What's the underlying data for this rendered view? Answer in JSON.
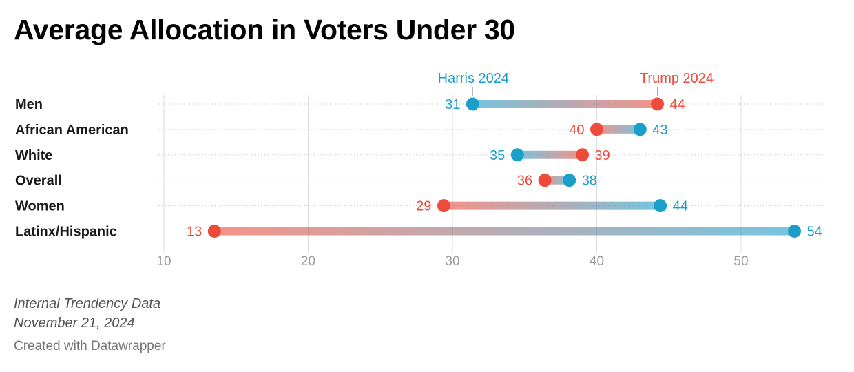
{
  "header": {
    "title": "Average Allocation in Voters Under 30"
  },
  "footer": {
    "note_line1": "Internal Trendency Data",
    "note_line2": "November 21, 2024",
    "credit": "Created with Datawrapper"
  },
  "colors": {
    "harris": "#1a9fcb",
    "trump": "#ef4b3b",
    "grid": "#dddddd",
    "ticks": "#9a9a9a"
  },
  "chart_data": {
    "type": "dot-range",
    "title": "Average Allocation in Voters Under 30",
    "series": [
      {
        "name": "Harris 2024",
        "color": "#1a9fcb",
        "values": [
          31.4,
          43.0,
          34.5,
          38.1,
          44.4,
          53.7
        ],
        "labels": [
          "31",
          "43",
          "35",
          "38",
          "44",
          "54"
        ]
      },
      {
        "name": "Trump 2024",
        "color": "#ef4b3b",
        "values": [
          44.2,
          40.0,
          39.0,
          36.4,
          29.4,
          13.5
        ],
        "labels": [
          "44",
          "40",
          "39",
          "36",
          "29",
          "13"
        ]
      }
    ],
    "categories": [
      "Men",
      "African American",
      "White",
      "Overall",
      "Women",
      "Latinx/Hispanic"
    ],
    "xlim": [
      10,
      55
    ],
    "xticks": [
      "10",
      "20",
      "30",
      "40",
      "50"
    ],
    "grid": true,
    "legend": "series labels above first row"
  }
}
